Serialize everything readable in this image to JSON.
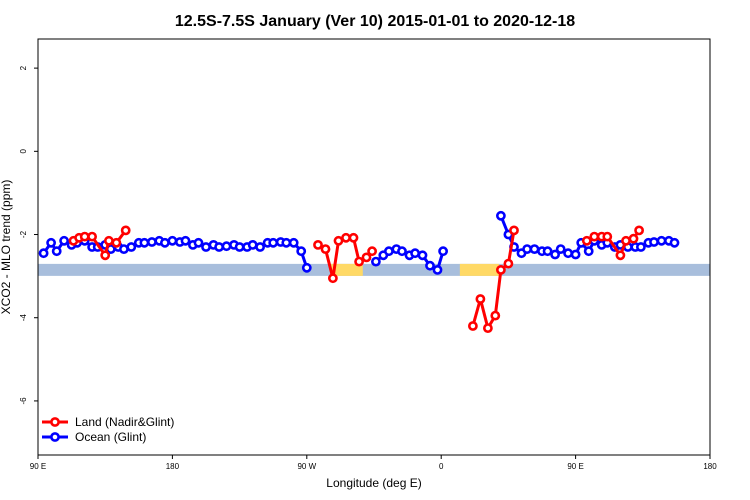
{
  "chart_data": {
    "type": "line",
    "title": "12.5S-7.5S January (Ver 10)   2015-01-01 to 2020-12-18",
    "xlabel": "Longitude (deg E)",
    "ylabel": "XCO2 - MLO trend (ppm)",
    "xlim": [
      90,
      450
    ],
    "ylim": [
      -7.3,
      2.7
    ],
    "x_ticks": [
      {
        "value": 90,
        "label": "90 E"
      },
      {
        "value": 162,
        "label": "180"
      },
      {
        "value": 234,
        "label": "90 W"
      },
      {
        "value": 306,
        "label": "0"
      },
      {
        "value": 378,
        "label": "90 E"
      },
      {
        "value": 450,
        "label": "180"
      }
    ],
    "y_ticks": [
      {
        "value": 2,
        "label": "2"
      },
      {
        "value": 0,
        "label": "0"
      },
      {
        "value": -2,
        "label": "-2"
      },
      {
        "value": -4,
        "label": "-4"
      },
      {
        "value": -6,
        "label": "-6"
      }
    ],
    "land_mask": {
      "y": -2.85,
      "ocean_color": "#a8bedc",
      "land_color": "#ffd966",
      "land_spans": [
        [
          247,
          264
        ],
        [
          316,
          337
        ]
      ]
    },
    "series": [
      {
        "name": "Land (Nadir&Glint)",
        "color": "#ff0000",
        "segments": [
          [
            [
              109,
              -2.15
            ],
            [
              112,
              -2.08
            ],
            [
              115,
              -2.05
            ],
            [
              119,
              -2.05
            ],
            [
              126,
              -2.5
            ],
            [
              128,
              -2.15
            ],
            [
              132,
              -2.2
            ],
            [
              137,
              -1.9
            ]
          ],
          [
            [
              240,
              -2.25
            ],
            [
              244,
              -2.35
            ],
            [
              248,
              -3.05
            ],
            [
              251,
              -2.15
            ],
            [
              255,
              -2.08
            ],
            [
              259,
              -2.08
            ],
            [
              262,
              -2.65
            ],
            [
              266,
              -2.55
            ],
            [
              269,
              -2.4
            ]
          ],
          [
            [
              323,
              -4.2
            ],
            [
              327,
              -3.55
            ],
            [
              331,
              -4.25
            ],
            [
              335,
              -3.95
            ],
            [
              338,
              -2.85
            ],
            [
              342,
              -2.7
            ],
            [
              345,
              -1.9
            ]
          ],
          [
            [
              384,
              -2.15
            ],
            [
              388,
              -2.05
            ],
            [
              392,
              -2.05
            ],
            [
              395,
              -2.05
            ],
            [
              402,
              -2.5
            ],
            [
              405,
              -2.15
            ],
            [
              409,
              -2.1
            ],
            [
              412,
              -1.9
            ]
          ]
        ]
      },
      {
        "name": "Ocean (Glint)",
        "color": "#0000ff",
        "segments": [
          [
            [
              93,
              -2.45
            ],
            [
              97,
              -2.2
            ],
            [
              100,
              -2.4
            ],
            [
              104,
              -2.15
            ],
            [
              108,
              -2.25
            ],
            [
              111,
              -2.2
            ],
            [
              115,
              -2.15
            ],
            [
              119,
              -2.3
            ],
            [
              122,
              -2.3
            ],
            [
              126,
              -2.25
            ],
            [
              129,
              -2.35
            ],
            [
              133,
              -2.3
            ],
            [
              136,
              -2.35
            ],
            [
              140,
              -2.3
            ],
            [
              144,
              -2.2
            ],
            [
              147,
              -2.2
            ],
            [
              151,
              -2.18
            ],
            [
              155,
              -2.15
            ],
            [
              158,
              -2.2
            ],
            [
              162,
              -2.15
            ],
            [
              166,
              -2.18
            ],
            [
              169,
              -2.15
            ],
            [
              173,
              -2.25
            ],
            [
              176,
              -2.2
            ],
            [
              180,
              -2.3
            ],
            [
              184,
              -2.25
            ],
            [
              187,
              -2.3
            ],
            [
              191,
              -2.28
            ],
            [
              195,
              -2.25
            ],
            [
              198,
              -2.3
            ],
            [
              202,
              -2.3
            ],
            [
              205,
              -2.25
            ],
            [
              209,
              -2.3
            ],
            [
              213,
              -2.2
            ],
            [
              216,
              -2.2
            ],
            [
              220,
              -2.18
            ],
            [
              223,
              -2.2
            ],
            [
              227,
              -2.2
            ],
            [
              231,
              -2.4
            ],
            [
              234,
              -2.8
            ]
          ],
          [
            [
              271,
              -2.65
            ],
            [
              275,
              -2.5
            ],
            [
              278,
              -2.4
            ],
            [
              282,
              -2.35
            ],
            [
              285,
              -2.4
            ],
            [
              289,
              -2.5
            ],
            [
              292,
              -2.45
            ],
            [
              296,
              -2.5
            ],
            [
              300,
              -2.75
            ],
            [
              304,
              -2.85
            ],
            [
              307,
              -2.4
            ]
          ],
          [
            [
              338,
              -1.55
            ],
            [
              342,
              -2.0
            ],
            [
              345,
              -2.3
            ],
            [
              349,
              -2.45
            ],
            [
              352,
              -2.35
            ],
            [
              356,
              -2.35
            ],
            [
              360,
              -2.4
            ],
            [
              363,
              -2.4
            ],
            [
              367,
              -2.48
            ],
            [
              370,
              -2.35
            ],
            [
              374,
              -2.45
            ],
            [
              378,
              -2.48
            ],
            [
              381,
              -2.2
            ],
            [
              385,
              -2.4
            ],
            [
              388,
              -2.15
            ],
            [
              392,
              -2.25
            ],
            [
              395,
              -2.2
            ],
            [
              399,
              -2.3
            ],
            [
              402,
              -2.25
            ],
            [
              406,
              -2.3
            ],
            [
              410,
              -2.3
            ],
            [
              413,
              -2.3
            ],
            [
              417,
              -2.2
            ],
            [
              420,
              -2.18
            ],
            [
              424,
              -2.15
            ],
            [
              428,
              -2.15
            ],
            [
              431,
              -2.2
            ]
          ]
        ]
      }
    ],
    "legend": {
      "position": "bottom-left",
      "entries": [
        "Land (Nadir&Glint)",
        "Ocean (Glint)"
      ]
    }
  }
}
